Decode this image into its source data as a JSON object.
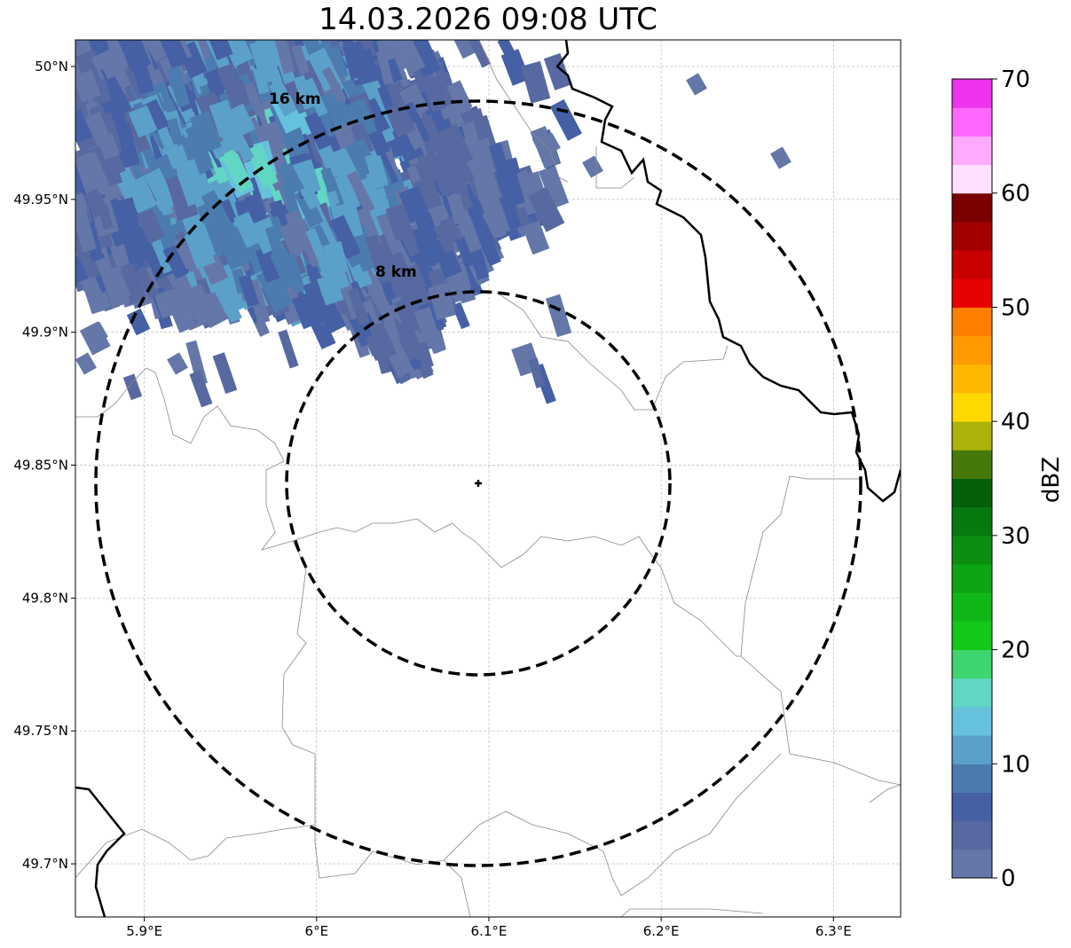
{
  "title": "14.03.2026 09:08 UTC",
  "colors": {
    "ring": "#000000",
    "border": "#888888",
    "river": "#000000",
    "grid": "#b0b0b0"
  },
  "chart_data": {
    "type": "heatmap",
    "title": "14.03.2026 09:08 UTC",
    "x_ticks": [
      "5.9°E",
      "6°E",
      "6.1°E",
      "6.2°E",
      "6.3°E"
    ],
    "x_tick_values": [
      5.9,
      6.0,
      6.1,
      6.2,
      6.3
    ],
    "y_ticks": [
      "50°N",
      "49.95°N",
      "49.9°N",
      "49.85°N",
      "49.8°N",
      "49.75°N",
      "49.7°N"
    ],
    "y_tick_values": [
      50.0,
      49.95,
      49.9,
      49.85,
      49.8,
      49.75,
      49.7
    ],
    "xlim": [
      5.86,
      6.339
    ],
    "ylim": [
      49.68,
      50.01
    ],
    "grid": true,
    "radar_site": {
      "lon": 6.094,
      "lat": 49.843
    },
    "rings": [
      {
        "label": "8 km",
        "radius_km": 8
      },
      {
        "label": "16 km",
        "radius_km": 16
      }
    ],
    "colorbar": {
      "label": "dBZ",
      "min": 0,
      "max": 70,
      "step": 2.5,
      "tick_labels": [
        "0",
        "10",
        "20",
        "30",
        "40",
        "50",
        "60",
        "70"
      ],
      "tick_values": [
        0,
        10,
        20,
        30,
        40,
        50,
        60,
        70
      ],
      "colors": [
        "#6577a8",
        "#5769a0",
        "#4560a5",
        "#4c7bb0",
        "#5ba0c8",
        "#66c2dc",
        "#62d6c4",
        "#3ed56e",
        "#12c91a",
        "#10b817",
        "#0ea413",
        "#0b8e0f",
        "#087811",
        "#05600c",
        "#46790a",
        "#adb20a",
        "#ffd800",
        "#ffb800",
        "#ff9b00",
        "#ff7f00",
        "#e60000",
        "#c80000",
        "#a00000",
        "#7a0000",
        "#ffe0ff",
        "#ffaaff",
        "#ff66ff",
        "#ee33ee"
      ]
    },
    "echo_region": "north-west",
    "echo_max_dbz": 17.5
  }
}
